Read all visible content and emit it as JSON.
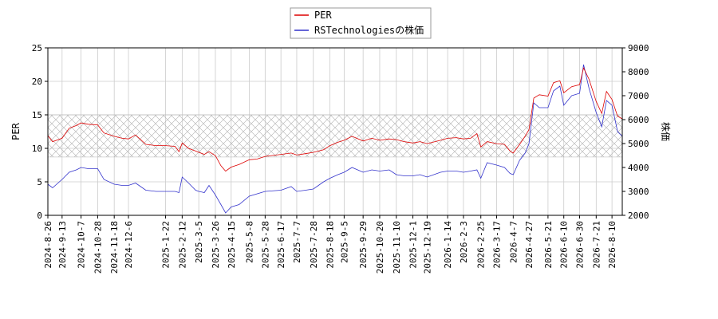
{
  "chart_data": {
    "type": "line",
    "title": "",
    "legend": {
      "placement": "top-center",
      "entries": [
        "PER",
        "RSTechnologiesの株価"
      ]
    },
    "left_axis": {
      "label": "PER",
      "range": [
        0,
        25
      ],
      "ticks": [
        "0",
        "5",
        "10",
        "15",
        "20",
        "25"
      ]
    },
    "right_axis": {
      "label": "株価",
      "range": [
        2000,
        9000
      ],
      "ticks": [
        "2000",
        "3000",
        "4000",
        "5000",
        "6000",
        "7000",
        "8000",
        "9000"
      ]
    },
    "x_axis": {
      "range": [
        "2024-08-26",
        "2026-08-23"
      ],
      "tick_labels": [
        "2024-8-26",
        "2024-9-13",
        "2024-10-7",
        "2024-10-28",
        "2024-11-18",
        "2024-12-6",
        "2025-1-22",
        "2025-2-12",
        "2025-3-5",
        "2025-3-26",
        "2025-4-15",
        "2025-5-8",
        "2025-5-28",
        "2025-6-17",
        "2025-7-7",
        "2025-7-28",
        "2025-8-18",
        "2025-9-5",
        "2025-9-29",
        "2025-10-20",
        "2025-11-10",
        "2025-12-1",
        "2025-12-19",
        "2026-1-14",
        "2026-2-3",
        "2026-2-25",
        "2026-3-17",
        "2026-4-7",
        "2026-4-27",
        "2026-5-21",
        "2026-6-10",
        "2026-6-30",
        "2026-7-21",
        "2026-8-10"
      ]
    },
    "grid": true,
    "band": {
      "axis": "left",
      "from": 8.7,
      "to": 15,
      "pattern": "crosshatch"
    },
    "colors": {
      "per": "#dd0000",
      "price": "#3333cc",
      "grid": "#cccccc",
      "band": "#aaaaaa"
    },
    "series": [
      {
        "name": "PER",
        "axis": "left",
        "points": [
          [
            "2024-08-26",
            11.9
          ],
          [
            "2024-09-01",
            11.0
          ],
          [
            "2024-09-13",
            11.5
          ],
          [
            "2024-09-22",
            13.0
          ],
          [
            "2024-10-01",
            13.4
          ],
          [
            "2024-10-07",
            13.8
          ],
          [
            "2024-10-16",
            13.6
          ],
          [
            "2024-10-28",
            13.5
          ],
          [
            "2024-11-05",
            12.3
          ],
          [
            "2024-11-18",
            11.8
          ],
          [
            "2024-11-28",
            11.5
          ],
          [
            "2024-12-06",
            11.4
          ],
          [
            "2024-12-15",
            12.0
          ],
          [
            "2024-12-28",
            10.6
          ],
          [
            "2025-01-10",
            10.4
          ],
          [
            "2025-01-22",
            10.4
          ],
          [
            "2025-02-03",
            10.3
          ],
          [
            "2025-02-08",
            9.5
          ],
          [
            "2025-02-12",
            10.8
          ],
          [
            "2025-02-20",
            10.0
          ],
          [
            "2025-03-01",
            9.6
          ],
          [
            "2025-03-05",
            9.4
          ],
          [
            "2025-03-12",
            9.1
          ],
          [
            "2025-03-18",
            9.5
          ],
          [
            "2025-03-26",
            8.9
          ],
          [
            "2025-04-02",
            7.4
          ],
          [
            "2025-04-08",
            6.6
          ],
          [
            "2025-04-15",
            7.2
          ],
          [
            "2025-04-25",
            7.6
          ],
          [
            "2025-05-08",
            8.3
          ],
          [
            "2025-05-18",
            8.4
          ],
          [
            "2025-05-28",
            8.8
          ],
          [
            "2025-06-17",
            9.1
          ],
          [
            "2025-06-30",
            9.3
          ],
          [
            "2025-07-07",
            9.0
          ],
          [
            "2025-07-18",
            9.2
          ],
          [
            "2025-07-28",
            9.4
          ],
          [
            "2025-08-10",
            9.8
          ],
          [
            "2025-08-18",
            10.4
          ],
          [
            "2025-08-28",
            10.9
          ],
          [
            "2025-09-05",
            11.2
          ],
          [
            "2025-09-15",
            11.8
          ],
          [
            "2025-09-29",
            11.1
          ],
          [
            "2025-10-10",
            11.5
          ],
          [
            "2025-10-20",
            11.2
          ],
          [
            "2025-11-01",
            11.4
          ],
          [
            "2025-11-10",
            11.3
          ],
          [
            "2025-11-20",
            11.0
          ],
          [
            "2025-12-01",
            10.8
          ],
          [
            "2025-12-10",
            11.0
          ],
          [
            "2025-12-19",
            10.7
          ],
          [
            "2026-01-05",
            11.2
          ],
          [
            "2026-01-14",
            11.5
          ],
          [
            "2026-01-25",
            11.6
          ],
          [
            "2026-02-03",
            11.4
          ],
          [
            "2026-02-12",
            11.5
          ],
          [
            "2026-02-20",
            12.2
          ],
          [
            "2026-02-25",
            10.2
          ],
          [
            "2026-03-05",
            11.0
          ],
          [
            "2026-03-17",
            10.7
          ],
          [
            "2026-03-27",
            10.6
          ],
          [
            "2026-04-03",
            9.6
          ],
          [
            "2026-04-07",
            9.3
          ],
          [
            "2026-04-15",
            10.6
          ],
          [
            "2026-04-22",
            11.8
          ],
          [
            "2026-04-27",
            12.8
          ],
          [
            "2026-05-03",
            17.5
          ],
          [
            "2026-05-10",
            18.0
          ],
          [
            "2026-05-21",
            17.8
          ],
          [
            "2026-05-28",
            19.8
          ],
          [
            "2026-06-05",
            20.1
          ],
          [
            "2026-06-10",
            18.3
          ],
          [
            "2026-06-20",
            19.2
          ],
          [
            "2026-06-30",
            19.5
          ],
          [
            "2026-07-05",
            22.0
          ],
          [
            "2026-07-12",
            20.3
          ],
          [
            "2026-07-21",
            17.0
          ],
          [
            "2026-07-28",
            15.2
          ],
          [
            "2026-08-03",
            18.5
          ],
          [
            "2026-08-10",
            17.3
          ],
          [
            "2026-08-17",
            14.8
          ],
          [
            "2026-08-23",
            14.4
          ]
        ]
      },
      {
        "name": "RSTechnologiesの株価",
        "axis": "right",
        "points": [
          [
            "2024-08-26",
            3300
          ],
          [
            "2024-09-01",
            3150
          ],
          [
            "2024-09-13",
            3500
          ],
          [
            "2024-09-22",
            3800
          ],
          [
            "2024-10-01",
            3900
          ],
          [
            "2024-10-07",
            4000
          ],
          [
            "2024-10-16",
            3950
          ],
          [
            "2024-10-28",
            3950
          ],
          [
            "2024-11-05",
            3500
          ],
          [
            "2024-11-18",
            3300
          ],
          [
            "2024-11-28",
            3250
          ],
          [
            "2024-12-06",
            3250
          ],
          [
            "2024-12-15",
            3350
          ],
          [
            "2024-12-28",
            3050
          ],
          [
            "2025-01-10",
            3000
          ],
          [
            "2025-01-22",
            3000
          ],
          [
            "2025-02-03",
            3000
          ],
          [
            "2025-02-08",
            2950
          ],
          [
            "2025-02-12",
            3600
          ],
          [
            "2025-02-20",
            3350
          ],
          [
            "2025-03-01",
            3050
          ],
          [
            "2025-03-05",
            3000
          ],
          [
            "2025-03-12",
            2950
          ],
          [
            "2025-03-18",
            3250
          ],
          [
            "2025-03-26",
            2850
          ],
          [
            "2025-04-02",
            2450
          ],
          [
            "2025-04-08",
            2100
          ],
          [
            "2025-04-15",
            2350
          ],
          [
            "2025-04-25",
            2450
          ],
          [
            "2025-05-08",
            2800
          ],
          [
            "2025-05-18",
            2900
          ],
          [
            "2025-05-28",
            3000
          ],
          [
            "2025-06-17",
            3050
          ],
          [
            "2025-06-30",
            3200
          ],
          [
            "2025-07-07",
            3000
          ],
          [
            "2025-07-18",
            3050
          ],
          [
            "2025-07-28",
            3100
          ],
          [
            "2025-08-10",
            3400
          ],
          [
            "2025-08-18",
            3550
          ],
          [
            "2025-08-28",
            3700
          ],
          [
            "2025-09-05",
            3800
          ],
          [
            "2025-09-15",
            4000
          ],
          [
            "2025-09-29",
            3800
          ],
          [
            "2025-10-10",
            3900
          ],
          [
            "2025-10-20",
            3850
          ],
          [
            "2025-11-01",
            3900
          ],
          [
            "2025-11-10",
            3700
          ],
          [
            "2025-11-20",
            3650
          ],
          [
            "2025-12-01",
            3650
          ],
          [
            "2025-12-10",
            3700
          ],
          [
            "2025-12-19",
            3600
          ],
          [
            "2026-01-05",
            3800
          ],
          [
            "2026-01-14",
            3850
          ],
          [
            "2026-01-25",
            3850
          ],
          [
            "2026-02-03",
            3800
          ],
          [
            "2026-02-12",
            3850
          ],
          [
            "2026-02-20",
            3900
          ],
          [
            "2026-02-25",
            3550
          ],
          [
            "2026-03-05",
            4200
          ],
          [
            "2026-03-17",
            4100
          ],
          [
            "2026-03-27",
            4000
          ],
          [
            "2026-04-03",
            3750
          ],
          [
            "2026-04-07",
            3700
          ],
          [
            "2026-04-15",
            4300
          ],
          [
            "2026-04-22",
            4600
          ],
          [
            "2026-04-27",
            5000
          ],
          [
            "2026-05-03",
            6700
          ],
          [
            "2026-05-10",
            6500
          ],
          [
            "2026-05-21",
            6500
          ],
          [
            "2026-05-28",
            7200
          ],
          [
            "2026-06-05",
            7400
          ],
          [
            "2026-06-10",
            6600
          ],
          [
            "2026-06-20",
            7000
          ],
          [
            "2026-06-30",
            7100
          ],
          [
            "2026-07-05",
            8300
          ],
          [
            "2026-07-12",
            7300
          ],
          [
            "2026-07-21",
            6300
          ],
          [
            "2026-07-28",
            5700
          ],
          [
            "2026-08-03",
            6800
          ],
          [
            "2026-08-10",
            6600
          ],
          [
            "2026-08-17",
            5500
          ],
          [
            "2026-08-23",
            5300
          ]
        ]
      }
    ]
  }
}
